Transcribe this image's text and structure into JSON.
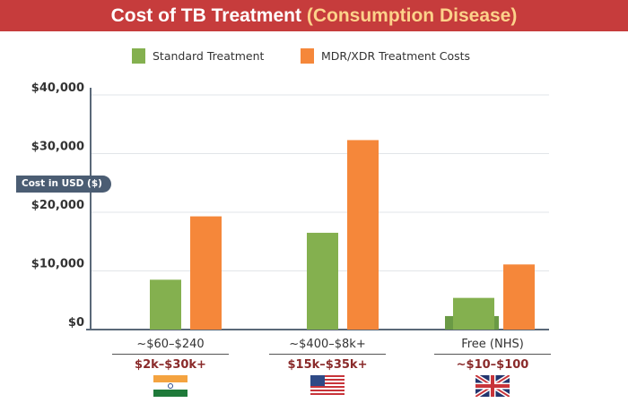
{
  "title": {
    "main": "Cost of TB Treatment",
    "sub": "(Consumption Disease)"
  },
  "chart_data": {
    "type": "bar",
    "title": "Cost of TB Treatment (Consumption Disease)",
    "ylabel": "Cost in USD ($)",
    "ylim": [
      0,
      40000
    ],
    "yticks": [
      "$0",
      "$10,000",
      "$20,000",
      "$30,000",
      "$40,000"
    ],
    "grid": true,
    "legend": "top",
    "categories": [
      "India",
      "USA",
      "UK"
    ],
    "category_labels": [
      {
        "standard": "~$60–$240",
        "mdr": "$2k–$30k+",
        "flag": "india-flag"
      },
      {
        "standard": "~$400–$8k+",
        "mdr": "$15k–$35k+",
        "flag": "usa-flag"
      },
      {
        "standard": "Free (NHS)",
        "mdr": "~$10–$100",
        "flag": "uk-flag"
      }
    ],
    "series": [
      {
        "name": "Standard Treatment",
        "color": "#84b04f",
        "values": [
          8500,
          16500,
          5400
        ]
      },
      {
        "name": "MDR/XDR Treatment Costs",
        "color": "#f5873a",
        "values": [
          19300,
          32300,
          11100
        ]
      }
    ],
    "extra_bar": {
      "category": "UK",
      "value": 2300,
      "color": "#6a9a45"
    }
  }
}
